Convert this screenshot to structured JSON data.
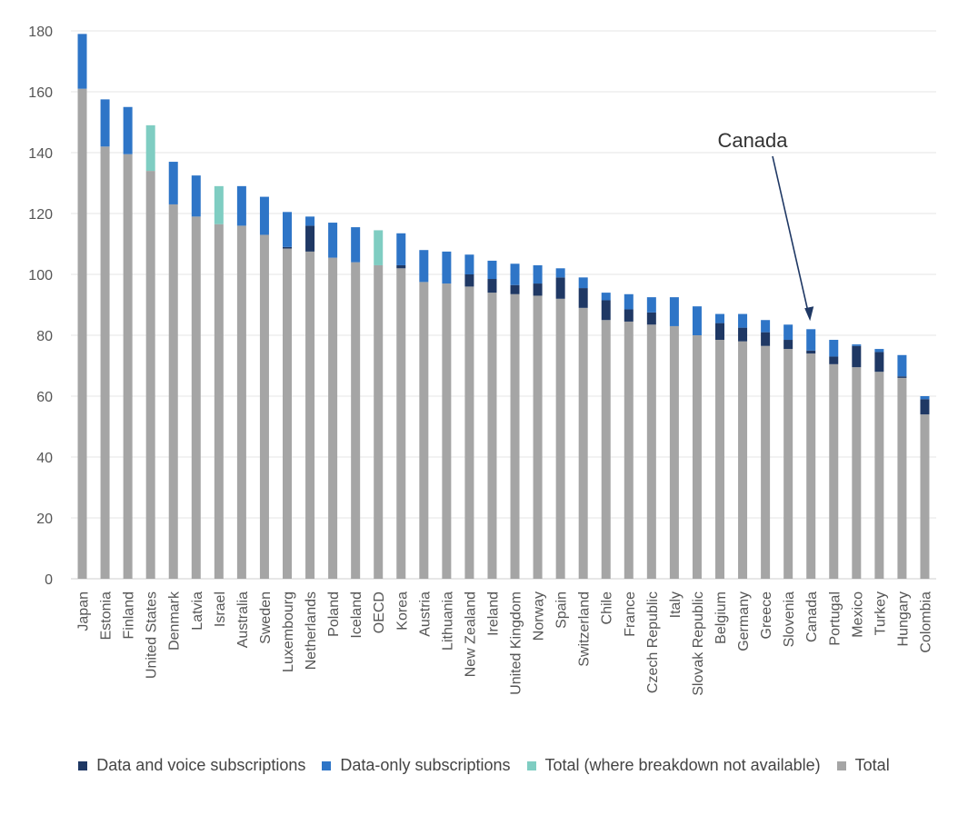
{
  "chart_data": {
    "type": "bar",
    "stacked": true,
    "title": "",
    "xlabel": "",
    "ylabel": "",
    "ylim": [
      0,
      180
    ],
    "yticks": [
      0,
      20,
      40,
      60,
      80,
      100,
      120,
      140,
      160,
      180
    ],
    "grid": true,
    "legend_position": "bottom",
    "categories": [
      "Japan",
      "Estonia",
      "Finland",
      "United States",
      "Denmark",
      "Latvia",
      "Israel",
      "Australia",
      "Sweden",
      "Luxembourg",
      "Netherlands",
      "Poland",
      "Iceland",
      "OECD",
      "Korea",
      "Austria",
      "Lithuania",
      "New Zealand",
      "Ireland",
      "United Kingdom",
      "Norway",
      "Spain",
      "Switzerland",
      "Chile",
      "France",
      "Czech Republic",
      "Italy",
      "Slovak Republic",
      "Belgium",
      "Germany",
      "Greece",
      "Slovenia",
      "Canada",
      "Portugal",
      "Mexico",
      "Turkey",
      "Hungary",
      "Colombia"
    ],
    "series": [
      {
        "name": "Total",
        "color": "#a5a5a5",
        "values": [
          161.0,
          142.0,
          139.5,
          134.0,
          123.0,
          119.0,
          116.5,
          116.0,
          113.0,
          108.5,
          107.5,
          105.5,
          104.0,
          103.0,
          102.0,
          97.5,
          97.0,
          96.0,
          94.0,
          93.5,
          93.0,
          92.0,
          89.0,
          85.0,
          84.5,
          83.5,
          83.0,
          80.0,
          78.5,
          78.0,
          76.5,
          75.5,
          74.0,
          70.5,
          69.5,
          68.0,
          66.0,
          54.0
        ]
      },
      {
        "name": "Data and voice subscriptions",
        "color": "#1f3864",
        "values": [
          0,
          0,
          0,
          0,
          0,
          0,
          0,
          0,
          0,
          0.5,
          8.5,
          0,
          0,
          0,
          1.0,
          0,
          0,
          4.0,
          4.5,
          3.0,
          4.0,
          7.0,
          6.5,
          6.5,
          4.0,
          4.0,
          0,
          0,
          5.5,
          4.5,
          4.5,
          3.0,
          1.0,
          2.5,
          7.0,
          6.5,
          0.5,
          5.0
        ]
      },
      {
        "name": "Data-only subscriptions",
        "color": "#2e75c7",
        "values": [
          18.0,
          15.5,
          15.5,
          0,
          14.0,
          13.5,
          0,
          13.0,
          12.5,
          11.5,
          3.0,
          11.5,
          11.5,
          0,
          10.5,
          10.5,
          10.5,
          6.5,
          6.0,
          7.0,
          6.0,
          3.0,
          3.5,
          2.5,
          5.0,
          5.0,
          9.5,
          9.5,
          3.0,
          4.5,
          4.0,
          5.0,
          7.0,
          5.5,
          0.5,
          1.0,
          7.0,
          1.0
        ]
      },
      {
        "name": "Total (where breakdown not available)",
        "color": "#7fcdc2",
        "values": [
          0,
          0,
          0,
          15.0,
          0,
          0,
          12.5,
          0,
          0,
          0,
          0,
          0,
          0,
          11.5,
          0,
          0,
          0,
          0,
          0,
          0,
          0,
          0,
          0,
          0,
          0,
          0,
          0,
          0,
          0,
          0,
          0,
          0,
          0,
          0,
          0,
          0,
          0,
          0
        ]
      }
    ],
    "annotations": [
      {
        "text": "Canada",
        "target": "Canada"
      }
    ]
  },
  "legend": [
    {
      "label": "Data and voice subscriptions",
      "color": "#1f3864"
    },
    {
      "label": "Data-only subscriptions",
      "color": "#2e75c7"
    },
    {
      "label": "Total (where breakdown not available)",
      "color": "#7fcdc2"
    },
    {
      "label": "Total",
      "color": "#a5a5a5"
    }
  ]
}
